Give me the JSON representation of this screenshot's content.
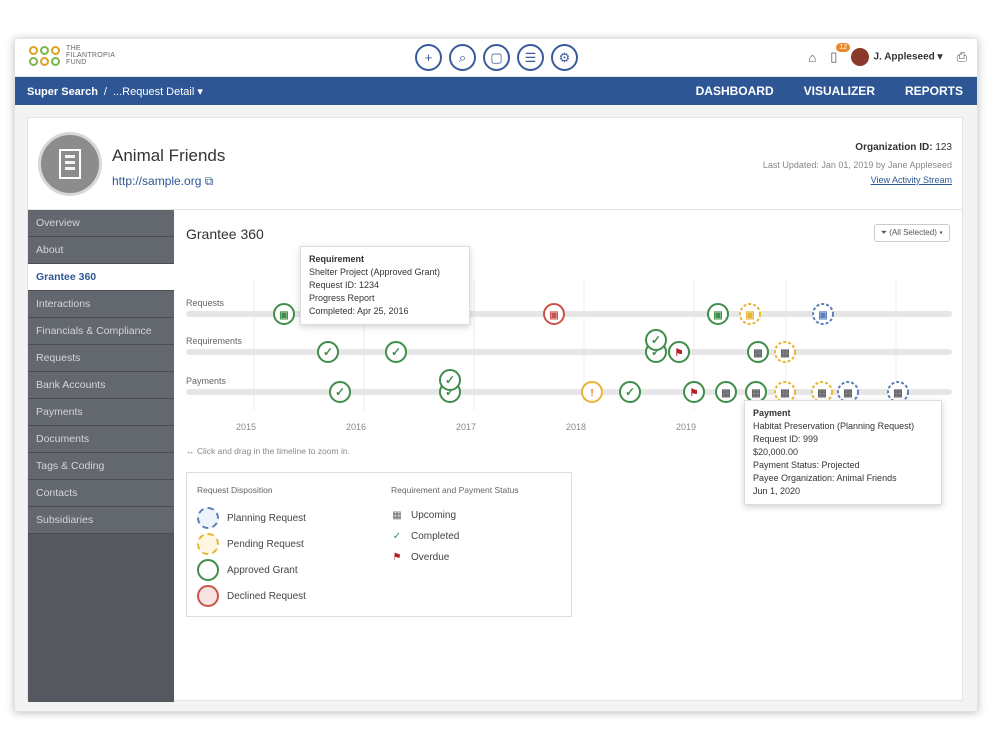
{
  "logo": {
    "line1": "THE",
    "line2": "FILANTROPIA",
    "line3": "FUND"
  },
  "user": {
    "name": "J. Appleseed",
    "notifications": "12"
  },
  "breadcrumb": {
    "root": "Super Search",
    "sep": "/",
    "current": "...Request Detail ▾"
  },
  "nav": {
    "dashboard": "DASHBOARD",
    "visualizer": "VISUALIZER",
    "reports": "REPORTS"
  },
  "org": {
    "name": "Animal Friends",
    "url": "http://sample.org",
    "id_label": "Organization ID:",
    "id_value": "123",
    "updated": "Last Updated: Jan 01, 2019 by Jane Appleseed",
    "activity_link": "View Activity Stream"
  },
  "sidebar": [
    "Overview",
    "About",
    "Grantee 360",
    "Interactions",
    "Financials & Compliance",
    "Requests",
    "Bank Accounts",
    "Payments",
    "Documents",
    "Tags & Coding",
    "Contacts",
    "Subsidiaries"
  ],
  "sidebar_active": "Grantee 360",
  "main": {
    "title": "Grantee 360",
    "filter": "(All Selected) ▾",
    "hint": "↔ Click and drag in the timeline to zoom in."
  },
  "timeline": {
    "rows": [
      "Requests",
      "Requirements",
      "Payments"
    ],
    "years": [
      "2015",
      "2016",
      "2017",
      "2018",
      "2019"
    ],
    "colors": {
      "approved": "#3e8e4a",
      "pending": "#e8b531",
      "planning": "#5a7fb8",
      "declined": "#c9534b",
      "overdue": "#b22222",
      "upcoming": "#777777"
    }
  },
  "tooltip1": {
    "title": "Requirement",
    "lines": [
      "Shelter Project (Approved Grant)",
      "Request ID: 1234",
      "Progress Report",
      "Completed: Apr 25, 2016"
    ]
  },
  "tooltip2": {
    "title": "Payment",
    "lines": [
      "Habitat Preservation (Planning Request)",
      "Request ID: 999",
      "$20,000.00",
      "Payment Status: Projected",
      "Payee Organization: Animal Friends",
      "Jun 1, 2020"
    ]
  },
  "legend": {
    "disposition_title": "Request Disposition",
    "disposition": [
      "Planning Request",
      "Pending Request",
      "Approved Grant",
      "Declined Request"
    ],
    "status_title": "Requirement and Payment Status",
    "status": [
      "Upcoming",
      "Completed",
      "Overdue"
    ]
  }
}
